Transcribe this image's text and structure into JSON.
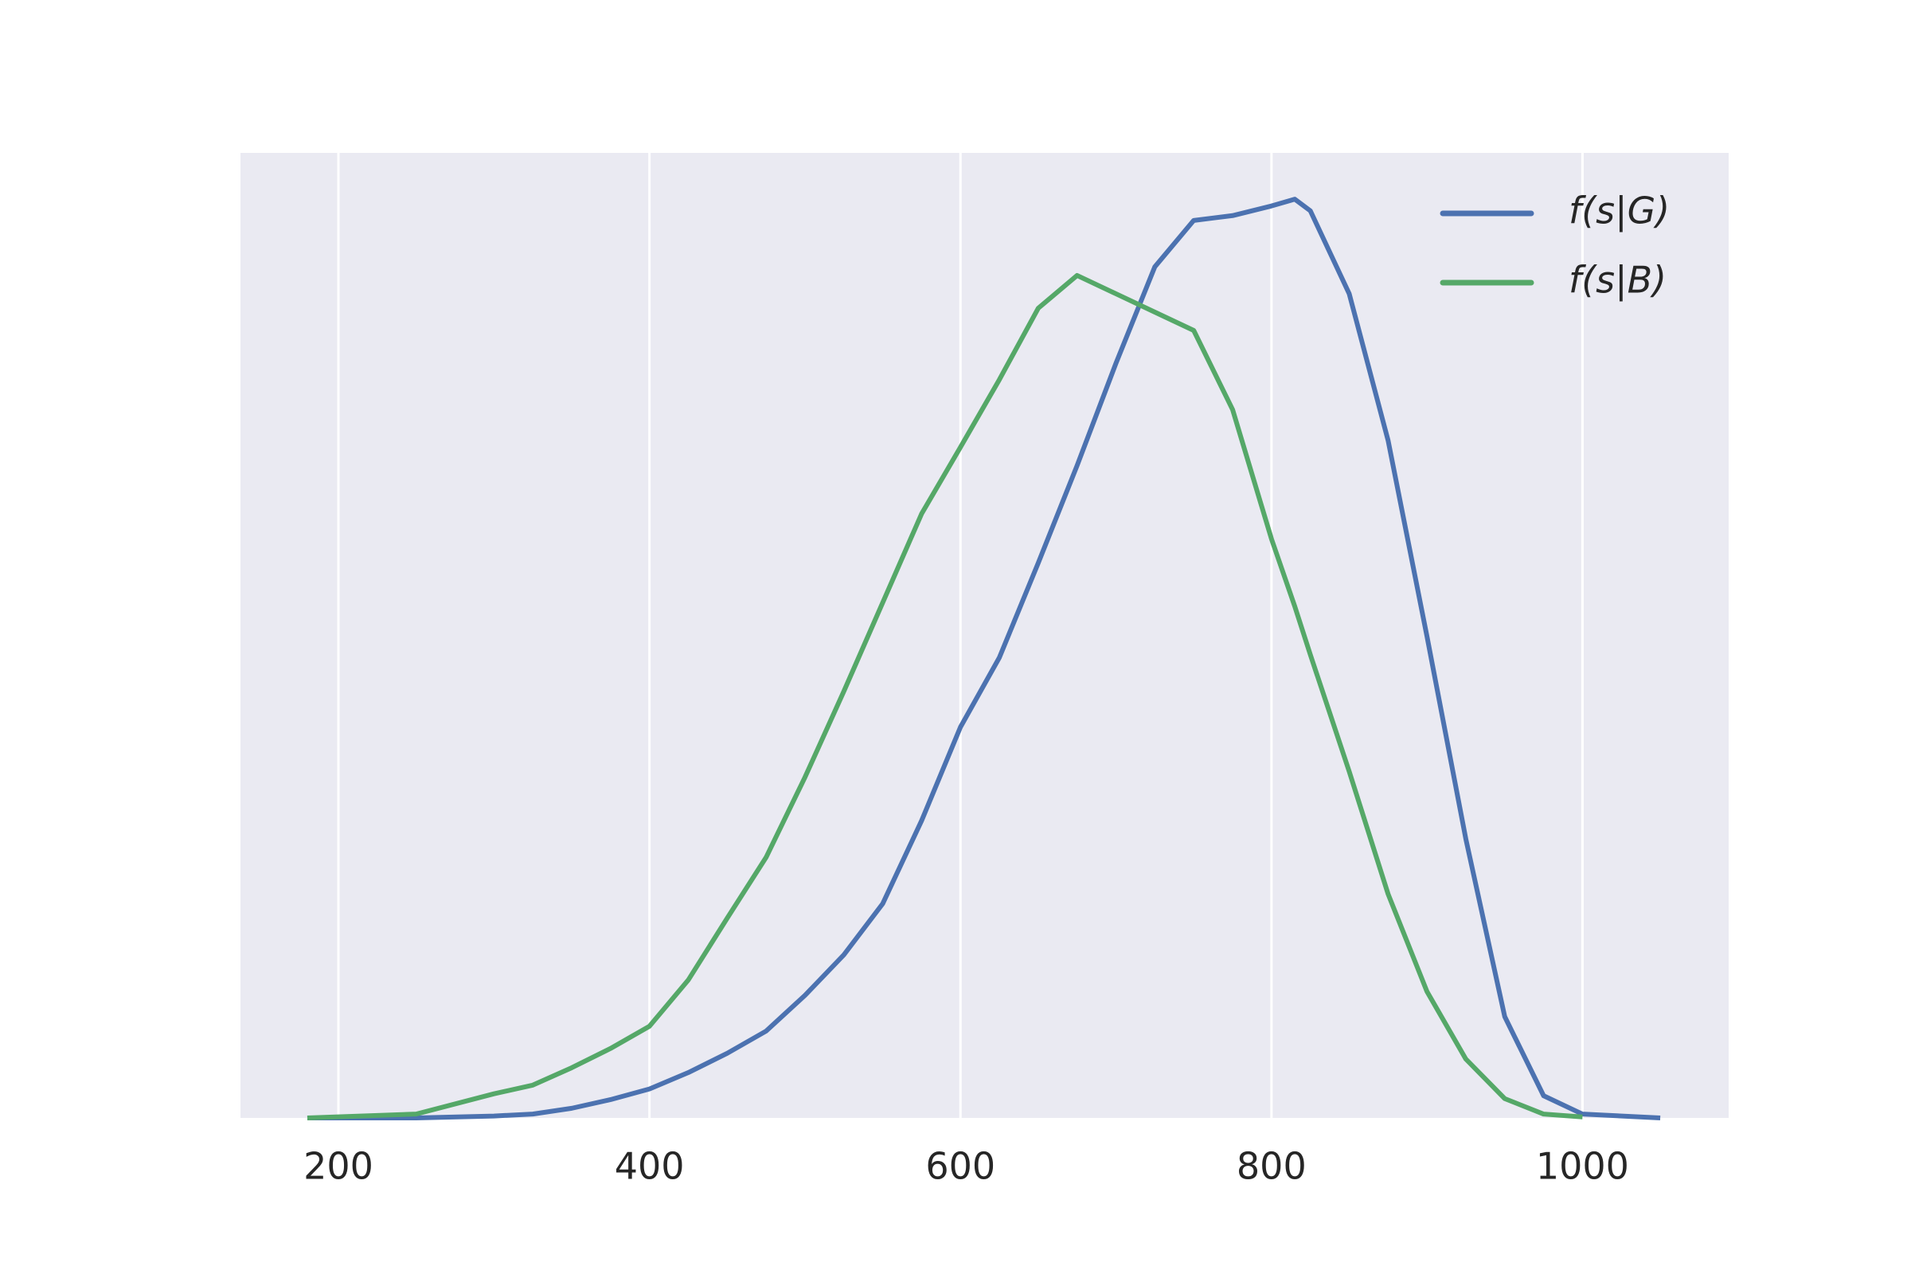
{
  "chart_data": {
    "type": "line",
    "x": [
      180,
      250,
      300,
      325,
      350,
      375,
      400,
      425,
      450,
      475,
      500,
      525,
      550,
      575,
      600,
      625,
      650,
      675,
      700,
      725,
      750,
      775,
      800,
      815,
      825,
      850,
      875,
      900,
      925,
      950,
      975,
      1000,
      1050
    ],
    "series": [
      {
        "name": "f(s|G)",
        "color": "#4c72b0",
        "values": [
          0,
          0,
          0.002,
          0.004,
          0.01,
          0.019,
          0.03,
          0.047,
          0.067,
          0.09,
          0.127,
          0.169,
          0.222,
          0.308,
          0.405,
          0.477,
          0.575,
          0.676,
          0.782,
          0.882,
          0.93,
          0.935,
          0.945,
          0.952,
          0.94,
          0.854,
          0.702,
          0.499,
          0.289,
          0.105,
          0.023,
          0.004,
          0
        ]
      },
      {
        "name": "f(s|B)",
        "color": "#55a868",
        "values": [
          0,
          0.004,
          0.025,
          0.034,
          0.052,
          0.072,
          0.095,
          0.143,
          0.207,
          0.27,
          0.353,
          0.442,
          0.534,
          0.626,
          0.695,
          0.765,
          0.839,
          0.873,
          0.854,
          0.835,
          0.816,
          0.734,
          0.6,
          0.53,
          0.48,
          0.359,
          0.232,
          0.131,
          0.061,
          0.02,
          0.004,
          0.001,
          null
        ]
      }
    ],
    "xlim": [
      137,
      1094
    ],
    "xticks": [
      200,
      400,
      600,
      800,
      1000
    ],
    "ylim": [
      0,
      1
    ],
    "grid": true,
    "legend": "upper right"
  }
}
